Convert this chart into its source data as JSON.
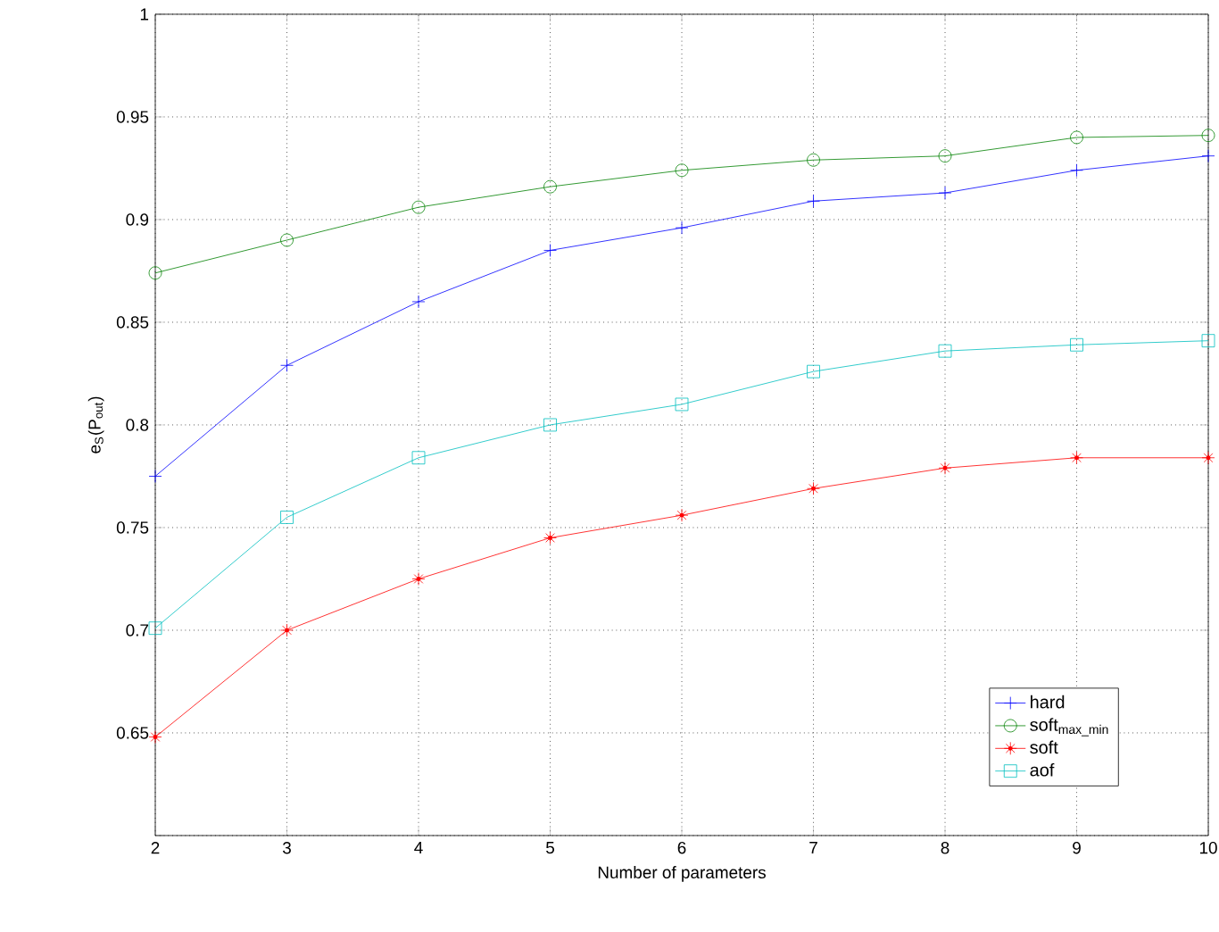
{
  "chart_data": {
    "type": "line",
    "xlabel": "Number of parameters",
    "ylabel": "e$_{S}$(P$_{out}$)",
    "x": [
      2,
      3,
      4,
      5,
      6,
      7,
      8,
      9,
      10
    ],
    "series": [
      {
        "name": "hard",
        "color": "#0000ff",
        "marker": "cross",
        "values": [
          0.775,
          0.829,
          0.86,
          0.885,
          0.896,
          0.909,
          0.913,
          0.924,
          0.931
        ]
      },
      {
        "name": "soft$_{max_min}$",
        "color": "#008000",
        "marker": "circle",
        "values": [
          0.874,
          0.89,
          0.906,
          0.916,
          0.924,
          0.929,
          0.931,
          0.94,
          0.941
        ]
      },
      {
        "name": "soft",
        "color": "#ff0000",
        "marker": "star",
        "values": [
          0.648,
          0.7,
          0.725,
          0.745,
          0.756,
          0.769,
          0.779,
          0.784,
          0.784
        ]
      },
      {
        "name": "aof",
        "color": "#00bfbf",
        "marker": "square",
        "values": [
          0.701,
          0.755,
          0.784,
          0.8,
          0.81,
          0.826,
          0.836,
          0.839,
          0.841
        ]
      }
    ],
    "xlim": [
      2,
      10
    ],
    "ylim": [
      0.6,
      1
    ],
    "xticks": [
      2,
      3,
      4,
      5,
      6,
      7,
      8,
      9,
      10
    ],
    "yticks": [
      {
        "value": 0.6,
        "label": null
      },
      0.65,
      0.7,
      0.75,
      0.8,
      0.85,
      0.9,
      0.95,
      1
    ],
    "grid": true,
    "legend": "bottom right",
    "line_style": "solid"
  }
}
